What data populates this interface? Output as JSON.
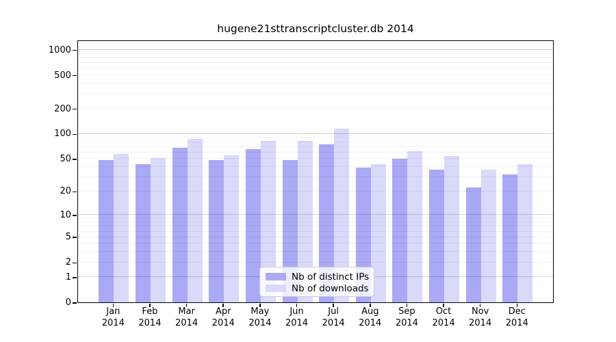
{
  "chart_data": {
    "type": "bar",
    "title": "hugene21sttranscriptcluster.db 2014",
    "categories": [
      "Jan 2014",
      "Feb 2014",
      "Mar 2014",
      "Apr 2014",
      "May 2014",
      "Jun 2014",
      "Jul 2014",
      "Aug 2014",
      "Sep 2014",
      "Oct 2014",
      "Nov 2014",
      "Dec 2014"
    ],
    "series": [
      {
        "name": "Nb of distinct IPs",
        "color": "#a9a9f5",
        "values": [
          48,
          43,
          68,
          48,
          65,
          48,
          75,
          39,
          50,
          37,
          22,
          32
        ]
      },
      {
        "name": "Nb of downloads",
        "color": "#d9d9fa",
        "values": [
          57,
          51,
          86,
          55,
          82,
          82,
          115,
          43,
          61,
          54,
          37,
          43
        ]
      }
    ],
    "xlabel": "",
    "ylabel": "",
    "yscale": "log1p",
    "y_ticks": [
      0,
      1,
      2,
      5,
      10,
      20,
      50,
      100,
      200,
      500,
      1000
    ],
    "ylim": [
      0,
      1320
    ],
    "grid": "horizontal, minor lines at 2-9 of each decade, major at powers of 10",
    "legend_position": "bottom-center"
  },
  "colors": {
    "bar_distinct_ips": "#a9a9f5",
    "bar_downloads": "#d9d9fa",
    "grid_minor": "#ececec",
    "grid_major": "#c9c9c9",
    "axis_frame": "#000000",
    "legend_border": "#cccccc",
    "background": "#ffffff"
  }
}
